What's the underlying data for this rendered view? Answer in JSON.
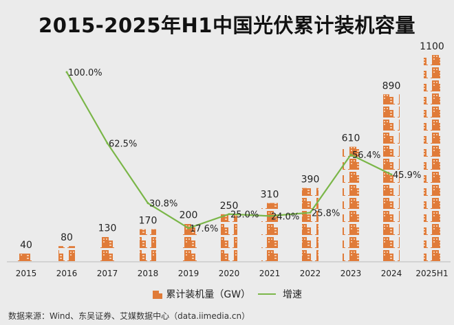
{
  "chart_data": {
    "type": "bar+line",
    "title": "2015-2025年H1中国光伏累计装机容量",
    "categories": [
      "2015",
      "2016",
      "2017",
      "2018",
      "2019",
      "2020",
      "2021",
      "2022",
      "2023",
      "2024",
      "2025H1"
    ],
    "series": [
      {
        "name": "累计装机量（GW）",
        "type": "pictograph-bar",
        "values": [
          40,
          80,
          130,
          170,
          200,
          250,
          310,
          390,
          610,
          890,
          1100
        ],
        "labels": [
          "40",
          "80",
          "130",
          "170",
          "200",
          "250",
          "310",
          "390",
          "610",
          "890",
          "1100"
        ]
      },
      {
        "name": "增速",
        "type": "line",
        "values": [
          null,
          100.0,
          62.5,
          30.8,
          17.6,
          25.0,
          24.0,
          25.8,
          56.4,
          45.9,
          null
        ],
        "labels": [
          "",
          "100.0%",
          "62.5%",
          "30.8%",
          "17.6%",
          "25.0%",
          "24.0%",
          "25.8%",
          "56.4%",
          "45.9%",
          ""
        ]
      }
    ],
    "colors": {
      "bar": "#e07b39",
      "line": "#7ab648"
    },
    "legend_position": "bottom",
    "grid": false
  },
  "legend": {
    "bar_label": "累计装机量（GW）",
    "line_label": "增速",
    "bar_icon": "building-icon"
  },
  "source": "数据来源：Wind、东吴证券、艾媒数据中心（data.iimedia.cn）"
}
